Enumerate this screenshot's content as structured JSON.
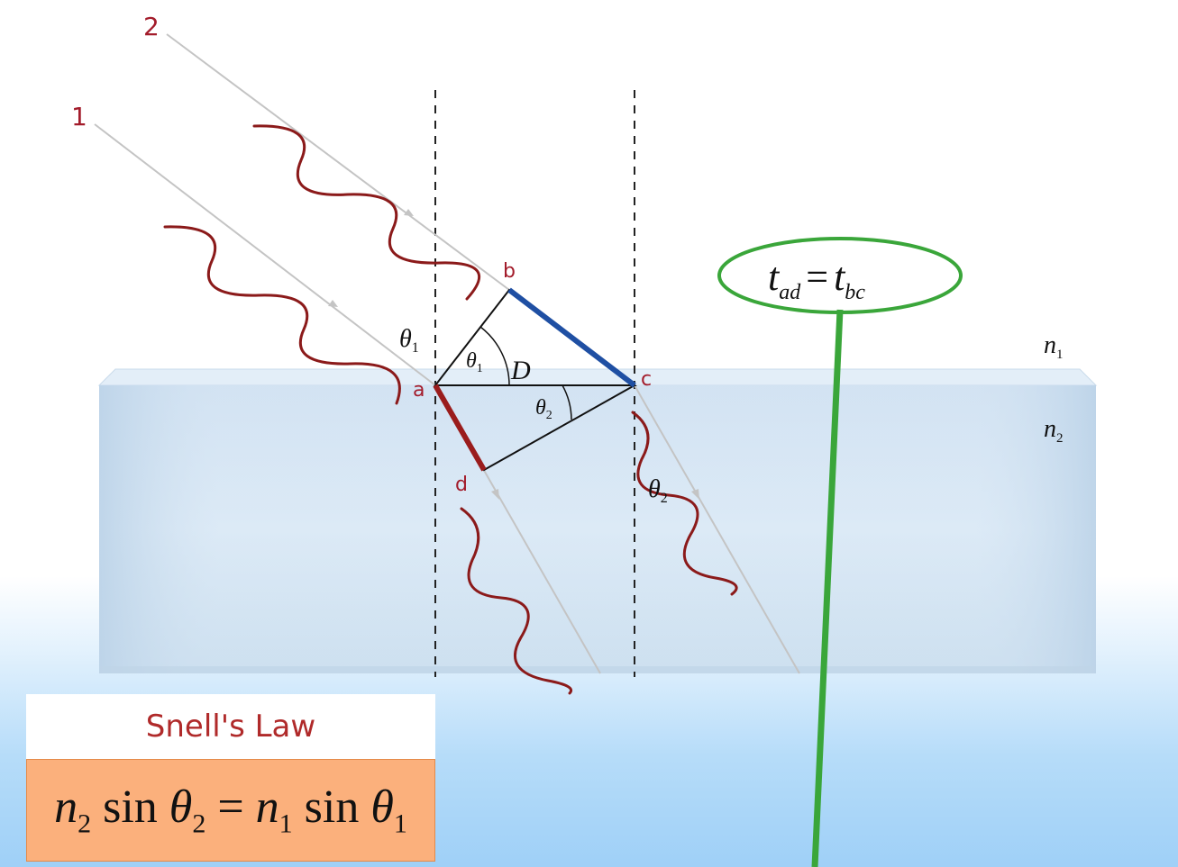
{
  "rays": {
    "ray1": "1",
    "ray2": "2"
  },
  "points": {
    "a": "a",
    "b": "b",
    "c": "c",
    "d": "d"
  },
  "media": {
    "n1": "n",
    "n1_sub": "1",
    "n2": "n",
    "n2_sub": "2"
  },
  "angles": {
    "theta": "θ",
    "sub1": "1",
    "sub2": "2",
    "D": "D"
  },
  "time_equation": {
    "t": "t",
    "ad": "ad",
    "eq": "=",
    "bc": "bc"
  },
  "snell": {
    "title": "Snell's Law",
    "n": "n",
    "sin": "sin",
    "theta": "θ",
    "sub2": "2",
    "sub1": "1",
    "eq": "="
  },
  "colors": {
    "ray_grey": "#bdbdbd",
    "wave_red": "#8b1a1a",
    "bc_blue": "#1f4fa3",
    "ad_red": "#9a1c1c",
    "ellipse_green": "#3aa63a",
    "glass": "#d7e7f5",
    "label_red": "#a31c2b",
    "snell_orange": "#fbb07c"
  }
}
